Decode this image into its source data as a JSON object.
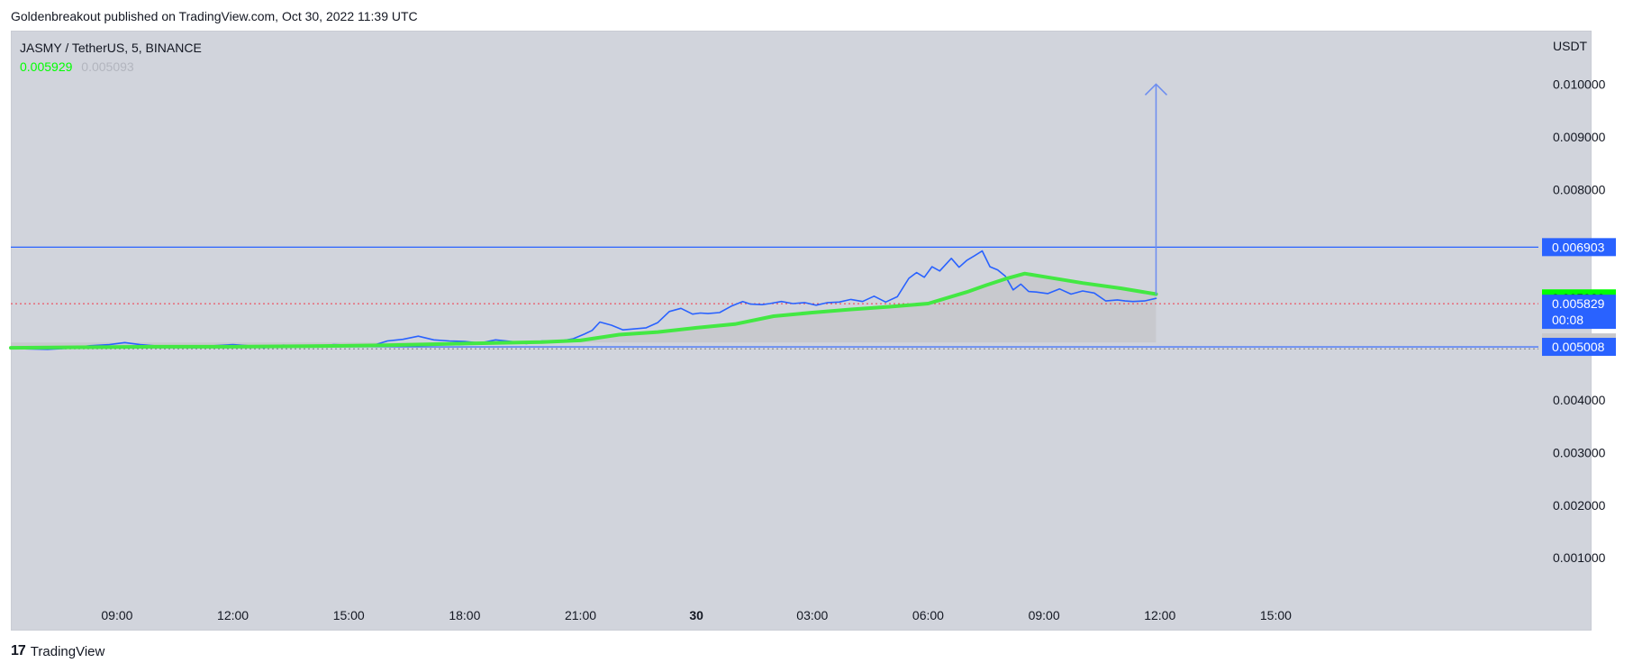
{
  "header": {
    "published": "Goldenbreakout published on TradingView.com, Oct 30, 2022 11:39 UTC"
  },
  "symbol": {
    "title": "JASMY / TetherUS, 5, BINANCE",
    "value_green": "0.005929",
    "value_gray": "0.005093"
  },
  "unit": "USDT",
  "footer": {
    "brand": "TradingView"
  },
  "colors": {
    "price_line": "#2962ff",
    "ma_line": "#43e843",
    "horizontal_line": "#2962ff",
    "dotted_red": "#f23645",
    "label_blue": "#2962ff",
    "label_green": "#00ff00",
    "label_gray": "#c8c8cc"
  },
  "chart_data": {
    "type": "line",
    "title": "JASMY / TetherUS, 5, BINANCE",
    "ylim": [
      0.00025,
      0.011
    ],
    "y_ticks": [
      {
        "value": 0.001,
        "label": "0.001000"
      },
      {
        "value": 0.002,
        "label": "0.002000"
      },
      {
        "value": 0.003,
        "label": "0.003000"
      },
      {
        "value": 0.004,
        "label": "0.004000"
      },
      {
        "value": 0.008,
        "label": "0.008000"
      },
      {
        "value": 0.009,
        "label": "0.009000"
      },
      {
        "value": 0.01,
        "label": "0.010000"
      }
    ],
    "x_range_hours": [
      6.25,
      17.25
    ],
    "x_ticks": [
      {
        "value": 9,
        "label": "09:00",
        "bold": false
      },
      {
        "value": 12,
        "label": "12:00",
        "bold": false
      },
      {
        "value": 15,
        "label": "15:00",
        "bold": false
      },
      {
        "value": 18,
        "label": "18:00",
        "bold": false
      },
      {
        "value": 21,
        "label": "21:00",
        "bold": false
      },
      {
        "value": 24,
        "label": "30",
        "bold": true
      },
      {
        "value": 27,
        "label": "03:00",
        "bold": false
      },
      {
        "value": 30,
        "label": "06:00",
        "bold": false
      },
      {
        "value": 33,
        "label": "09:00",
        "bold": false
      },
      {
        "value": 36,
        "label": "12:00",
        "bold": false
      },
      {
        "value": 39,
        "label": "15:00",
        "bold": false
      }
    ],
    "series": [
      {
        "name": "",
        "x": [
          6.25,
          6.7,
          7.2,
          7.7,
          8.3,
          8.8,
          9.2,
          9.6,
          10.1,
          10.5,
          11.0,
          11.5,
          12.0,
          12.4,
          12.8,
          13.3,
          13.8,
          14.2,
          14.6,
          15.1,
          15.6,
          16.0,
          16.4,
          16.8,
          17.2,
          17.6,
          18.0,
          18.4,
          18.8,
          19.2,
          19.6,
          20.0,
          20.4,
          20.8,
          21.1,
          21.3,
          21.5,
          21.8,
          22.1,
          22.4,
          22.7,
          23.0,
          23.3,
          23.6,
          23.9,
          24.1,
          24.3,
          24.6,
          24.9,
          25.2,
          25.4,
          25.7,
          25.9,
          26.2,
          26.5,
          26.8,
          27.1,
          27.4,
          27.7,
          28.0,
          28.3,
          28.6,
          28.9,
          29.2,
          29.5,
          29.7,
          29.9,
          30.1,
          30.3,
          30.6,
          30.8,
          31.0,
          31.2,
          31.4,
          31.6,
          31.8,
          32.0,
          32.2,
          32.4,
          32.6,
          32.8,
          33.1,
          33.4,
          33.7,
          34.0,
          34.3,
          34.6,
          34.9,
          35.1,
          35.3,
          35.6,
          35.9
        ],
        "values": [
          0.00498,
          0.00497,
          0.00496,
          0.00498,
          0.00503,
          0.00505,
          0.00509,
          0.00505,
          0.00502,
          0.00503,
          0.00499,
          0.00503,
          0.00505,
          0.00503,
          0.00499,
          0.00504,
          0.00502,
          0.00501,
          0.00505,
          0.00504,
          0.00503,
          0.00512,
          0.00515,
          0.00521,
          0.00514,
          0.00512,
          0.00511,
          0.00508,
          0.00514,
          0.00511,
          0.00507,
          0.00512,
          0.00511,
          0.00516,
          0.00525,
          0.00532,
          0.00548,
          0.00542,
          0.00533,
          0.00535,
          0.00537,
          0.00547,
          0.00568,
          0.00574,
          0.00563,
          0.00565,
          0.00564,
          0.00566,
          0.00578,
          0.00587,
          0.00582,
          0.00581,
          0.00583,
          0.00587,
          0.00583,
          0.00585,
          0.0058,
          0.00585,
          0.00586,
          0.00591,
          0.00587,
          0.00597,
          0.00586,
          0.00596,
          0.00631,
          0.00642,
          0.00633,
          0.00653,
          0.00645,
          0.00669,
          0.00652,
          0.00665,
          0.00674,
          0.00683,
          0.00653,
          0.00647,
          0.00635,
          0.00609,
          0.0062,
          0.00606,
          0.00605,
          0.00602,
          0.00611,
          0.00601,
          0.00607,
          0.00603,
          0.00588,
          0.0059,
          0.00588,
          0.00587,
          0.00588,
          0.00593
        ]
      },
      {
        "name": "",
        "x": [
          6.25,
          8.0,
          10.0,
          12.0,
          14.0,
          16.0,
          18.0,
          20.0,
          21.0,
          22.0,
          23.0,
          24.0,
          25.0,
          26.0,
          27.0,
          28.0,
          29.0,
          30.0,
          31.0,
          31.5,
          32.0,
          32.5,
          33.0,
          34.0,
          35.0,
          35.9
        ],
        "values": [
          0.00499,
          0.005,
          0.00501,
          0.00501,
          0.00502,
          0.00504,
          0.00507,
          0.0051,
          0.00513,
          0.00524,
          0.00529,
          0.00537,
          0.00544,
          0.00559,
          0.00566,
          0.00572,
          0.00577,
          0.00583,
          0.00605,
          0.00618,
          0.0063,
          0.0064,
          0.00634,
          0.00622,
          0.00612,
          0.00601
        ]
      }
    ],
    "horizontal_levels": [
      {
        "value": 0.006903,
        "label": "0.006903",
        "style": "solid-blue"
      },
      {
        "value": 0.005008,
        "label": "0.005008",
        "style": "solid-blue"
      },
      {
        "value": 0.005829,
        "label": "0.005829",
        "style": "dotted-red"
      }
    ],
    "price_labels": [
      {
        "value": 0.006903,
        "text": "0.006903",
        "color": "blue"
      },
      {
        "value": 0.005929,
        "text": "0.005929",
        "color": "green"
      },
      {
        "value": 0.005829,
        "text": "0.005829",
        "subtext": "00:08",
        "color": "blue"
      },
      {
        "value": 0.005093,
        "text": "0.005093",
        "color": "gray"
      },
      {
        "value": 0.005008,
        "text": "0.005008",
        "color": "blue"
      }
    ],
    "arrow": {
      "x": 35.9,
      "from": 0.006,
      "to": 0.01
    }
  }
}
